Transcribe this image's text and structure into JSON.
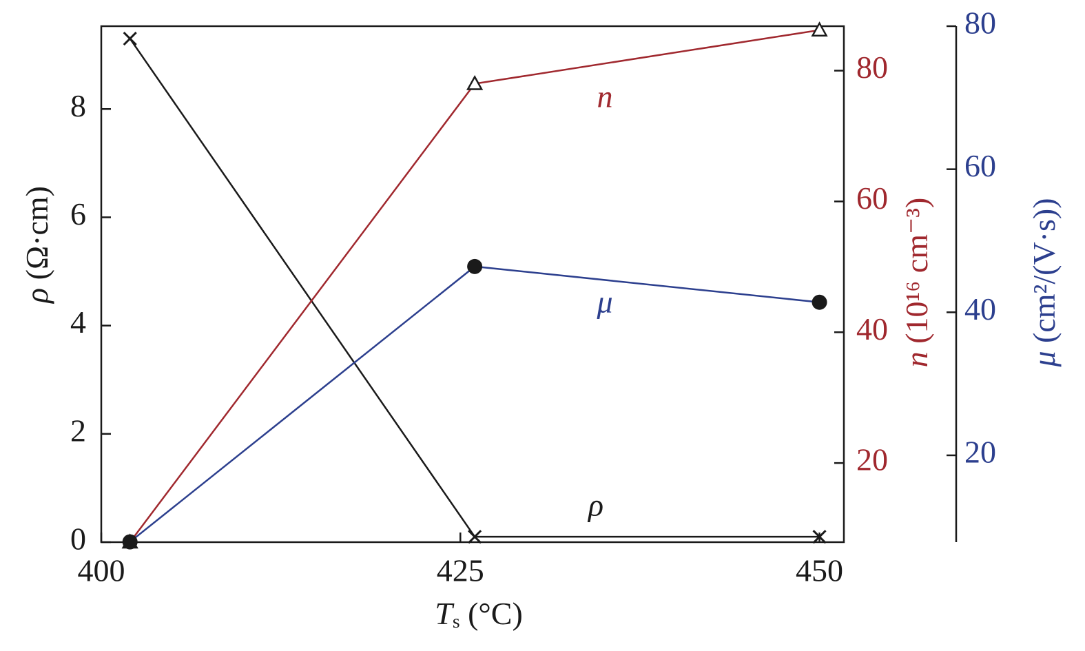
{
  "chart_data": {
    "type": "line",
    "x": [
      402,
      426,
      450
    ],
    "xlim": [
      400,
      451.7
    ],
    "xticks": [
      400,
      425,
      450
    ],
    "xlabel": {
      "symbol": "T",
      "subscript": "s",
      "unit": "(°C)"
    },
    "ylim": [
      0,
      9.53
    ],
    "yticks": [
      0,
      2,
      4,
      6,
      8
    ],
    "ylabel": {
      "symbol": "ρ",
      "unit": "(Ω·cm)"
    },
    "y2lim": [
      7.9,
      86.8
    ],
    "y2ticks": [
      20,
      40,
      60,
      80
    ],
    "y2label": {
      "symbol": "n",
      "unit": "(10¹⁶ cm⁻³)"
    },
    "y3lim": [
      7.86,
      80
    ],
    "y3ticks": [
      20,
      40,
      60,
      80
    ],
    "y3label": {
      "symbol": "μ",
      "unit": "(cm²/(V·s))"
    },
    "series": [
      {
        "name": "ρ",
        "color": "#1a1a1a",
        "marker": "x",
        "values": [
          9.3,
          0.1,
          0.1
        ]
      },
      {
        "name": "n",
        "color": "#a0282e",
        "marker": "triangle",
        "axis": "y2",
        "values": [
          7.9,
          78,
          86.2
        ]
      },
      {
        "name": "μ",
        "color": "#2c3f8e",
        "marker": "circle",
        "axis": "y3",
        "values": [
          7.9,
          46.4,
          41.4
        ]
      }
    ]
  }
}
